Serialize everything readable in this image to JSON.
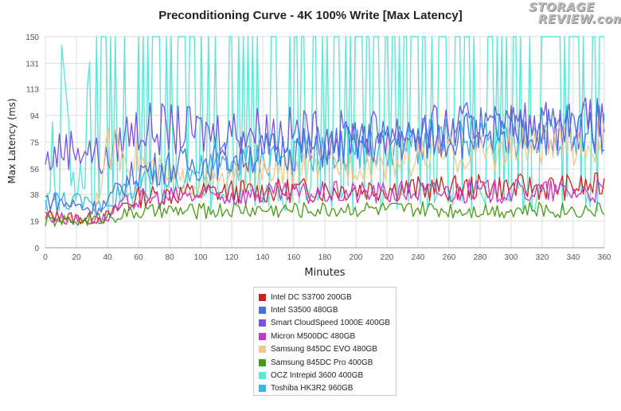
{
  "chart_data": {
    "type": "line",
    "title": "Preconditioning Curve - 4K 100% Write [Max Latency]",
    "xlabel": "Minutes",
    "ylabel": "Max Latency (ms)",
    "xlim": [
      0,
      360
    ],
    "ylim": [
      0,
      150
    ],
    "x_ticks": [
      0,
      20,
      40,
      60,
      80,
      100,
      120,
      140,
      160,
      180,
      200,
      220,
      240,
      260,
      280,
      300,
      320,
      340,
      360
    ],
    "y_ticks": [
      0,
      19,
      38,
      56,
      75,
      94,
      113,
      131,
      150
    ],
    "grid": true,
    "legend_position": "bottom",
    "series": [
      {
        "name": "Intel DC S3700 200GB",
        "color": "#cc2222",
        "x": [
          0,
          10,
          20,
          30,
          40,
          50,
          60,
          80,
          100,
          120,
          140,
          160,
          180,
          200,
          220,
          240,
          260,
          280,
          300,
          320,
          340,
          360
        ],
        "values": [
          23,
          22,
          21,
          21,
          22,
          30,
          36,
          38,
          39,
          40,
          40,
          41,
          41,
          42,
          42,
          42,
          42,
          43,
          43,
          43,
          43,
          44
        ]
      },
      {
        "name": "Intel S3500 480GB",
        "color": "#4a6fe0",
        "x": [
          0,
          10,
          20,
          30,
          40,
          50,
          60,
          80,
          100,
          120,
          140,
          160,
          180,
          200,
          220,
          240,
          260,
          280,
          300,
          320,
          340,
          360
        ],
        "values": [
          35,
          32,
          30,
          28,
          32,
          45,
          55,
          58,
          60,
          64,
          68,
          70,
          72,
          74,
          76,
          78,
          80,
          82,
          83,
          84,
          85,
          86
        ]
      },
      {
        "name": "Smart CloudSpeed 1000E 400GB",
        "color": "#7b52e0",
        "x": [
          0,
          10,
          20,
          30,
          40,
          50,
          60,
          80,
          100,
          120,
          140,
          160,
          180,
          200,
          220,
          240,
          260,
          280,
          300,
          320,
          340,
          360
        ],
        "values": [
          60,
          70,
          72,
          68,
          60,
          80,
          85,
          84,
          82,
          83,
          84,
          82,
          80,
          80,
          82,
          82,
          84,
          85,
          86,
          86,
          88,
          88
        ]
      },
      {
        "name": "Micron M500DC 480GB",
        "color": "#cc33cc",
        "x": [
          0,
          10,
          20,
          30,
          40,
          50,
          60,
          80,
          100,
          120,
          140,
          160,
          180,
          200,
          220,
          240,
          260,
          280,
          300,
          320,
          340,
          360
        ],
        "values": [
          22,
          21,
          20,
          20,
          21,
          30,
          34,
          36,
          37,
          37,
          38,
          38,
          39,
          39,
          39,
          40,
          40,
          40,
          40,
          40,
          40,
          40
        ]
      },
      {
        "name": "Samsung 845DC EVO 480GB",
        "color": "#f0c890",
        "x": [
          0,
          10,
          20,
          30,
          40,
          50,
          60,
          80,
          100,
          120,
          140,
          160,
          180,
          200,
          220,
          240,
          260,
          280,
          300,
          320,
          340,
          360
        ],
        "values": [
          22,
          21,
          20,
          20,
          70,
          68,
          62,
          48,
          45,
          48,
          52,
          55,
          58,
          60,
          62,
          64,
          66,
          68,
          70,
          72,
          74,
          75
        ]
      },
      {
        "name": "Samsung 845DC Pro 400GB",
        "color": "#4a9a1a",
        "x": [
          0,
          10,
          20,
          30,
          40,
          50,
          60,
          80,
          100,
          120,
          140,
          160,
          180,
          200,
          220,
          240,
          260,
          280,
          300,
          320,
          340,
          360
        ],
        "values": [
          19,
          19,
          19,
          20,
          22,
          24,
          25,
          26,
          26,
          27,
          27,
          27,
          27,
          28,
          27,
          27,
          27,
          27,
          27,
          27,
          27,
          27
        ]
      },
      {
        "name": "OCZ Intrepid 3600 400GB",
        "color": "#5ce6d6",
        "x": [
          0,
          10,
          20,
          30,
          40,
          50,
          60,
          80,
          100,
          120,
          140,
          160,
          180,
          200,
          220,
          240,
          260,
          280,
          300,
          320,
          340,
          360
        ],
        "values": [
          40,
          150,
          30,
          150,
          150,
          150,
          150,
          150,
          150,
          150,
          150,
          150,
          150,
          150,
          150,
          150,
          150,
          150,
          150,
          150,
          150,
          150
        ]
      },
      {
        "name": "Toshiba HK3R2 960GB",
        "color": "#3db4e8",
        "x": [
          0,
          10,
          20,
          30,
          40,
          50,
          60,
          80,
          100,
          120,
          140,
          160,
          180,
          200,
          220,
          240,
          260,
          280,
          300,
          320,
          340,
          360
        ],
        "values": [
          30,
          35,
          33,
          30,
          32,
          40,
          45,
          50,
          55,
          60,
          64,
          66,
          68,
          70,
          72,
          74,
          76,
          78,
          80,
          82,
          84,
          85
        ]
      }
    ]
  },
  "branding": {
    "logo_line1": "STORAGE",
    "logo_line2": "REVIEW.com"
  }
}
